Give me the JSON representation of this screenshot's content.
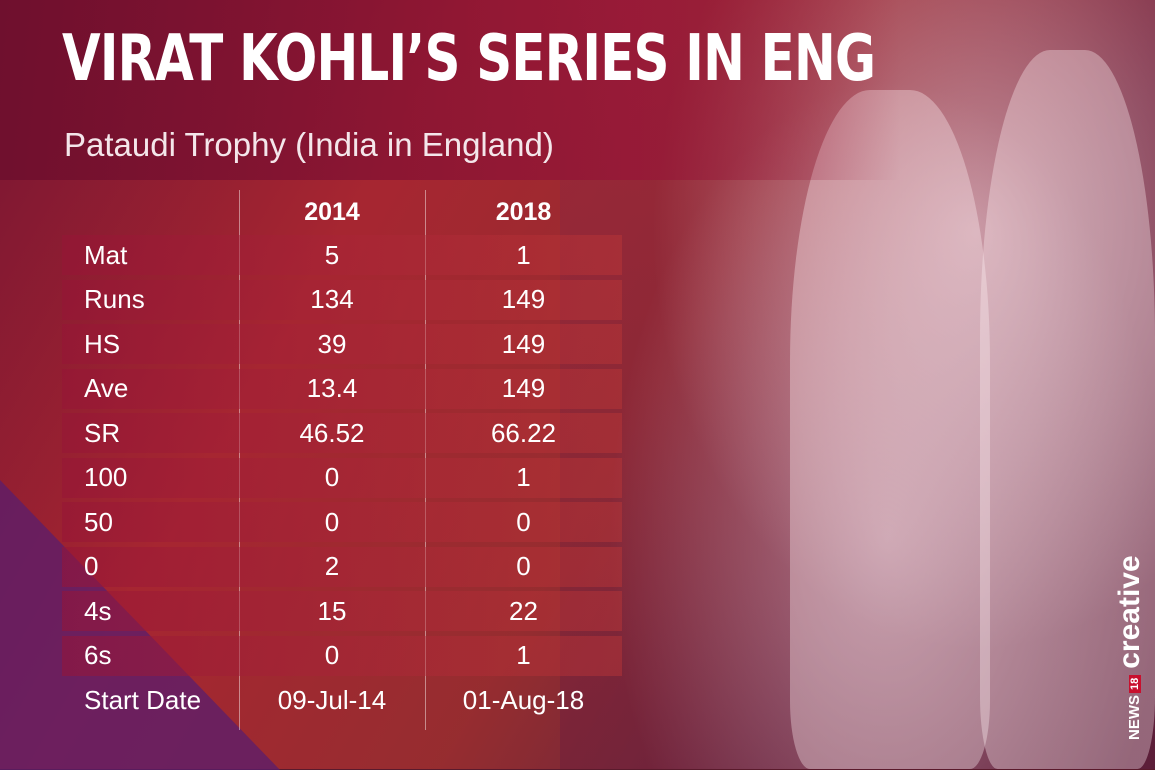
{
  "title": "VIRAT KOHLI’S SERIES IN ENG",
  "subtitle": "Pataudi Trophy (India in England)",
  "table": {
    "headers": [
      "",
      "2014",
      "2018"
    ],
    "rows": [
      [
        "Mat",
        "5",
        "1"
      ],
      [
        "Runs",
        "134",
        "149"
      ],
      [
        "HS",
        "39",
        "149"
      ],
      [
        "Ave",
        "13.4",
        "149"
      ],
      [
        "SR",
        "46.52",
        "66.22"
      ],
      [
        "100",
        "0",
        "1"
      ],
      [
        "50",
        "0",
        "0"
      ],
      [
        "0",
        "2",
        "0"
      ],
      [
        "4s",
        "15",
        "22"
      ],
      [
        "6s",
        "0",
        "1"
      ],
      [
        "Start Date",
        "09-Jul-14",
        "01-Aug-18"
      ]
    ]
  },
  "logo": {
    "news": "NEWS",
    "number": "18",
    "creative": "creative"
  },
  "colors": {
    "accent": "#c8102e",
    "background": "#5a1a2c"
  }
}
